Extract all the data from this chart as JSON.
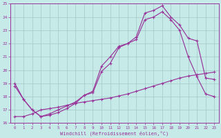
{
  "xlabel": "Windchill (Refroidissement éolien,°C)",
  "xlim": [
    -0.5,
    23.5
  ],
  "ylim": [
    16,
    25
  ],
  "yticks": [
    16,
    17,
    18,
    19,
    20,
    21,
    22,
    23,
    24,
    25
  ],
  "xticks": [
    0,
    1,
    2,
    3,
    4,
    5,
    6,
    7,
    8,
    9,
    10,
    11,
    12,
    13,
    14,
    15,
    16,
    17,
    18,
    19,
    20,
    21,
    22,
    23
  ],
  "bg_color": "#c5eae8",
  "line_color": "#993399",
  "grid_color": "#a0c8c8",
  "series1_x": [
    0,
    1,
    2,
    3,
    4,
    5,
    6,
    7,
    8,
    9,
    10,
    11,
    12,
    13,
    14,
    15,
    16,
    17,
    18,
    19,
    20,
    21,
    22,
    23
  ],
  "series1_y": [
    19.0,
    17.8,
    17.0,
    16.5,
    16.6,
    16.8,
    17.1,
    17.5,
    18.1,
    18.4,
    20.3,
    21.0,
    21.8,
    22.0,
    22.5,
    24.3,
    24.5,
    24.85,
    24.0,
    23.4,
    22.4,
    22.2,
    19.4,
    19.3
  ],
  "series2_x": [
    0,
    1,
    2,
    3,
    4,
    5,
    6,
    7,
    8,
    9,
    10,
    11,
    12,
    13,
    14,
    15,
    16,
    17,
    18,
    19,
    20,
    21,
    22,
    23
  ],
  "series2_y": [
    18.8,
    17.8,
    17.0,
    16.5,
    16.7,
    17.0,
    17.3,
    17.6,
    18.1,
    18.3,
    19.9,
    20.5,
    21.7,
    22.0,
    22.3,
    23.8,
    24.0,
    24.4,
    23.8,
    23.0,
    21.0,
    19.5,
    18.2,
    18.0
  ],
  "series3_x": [
    0,
    1,
    2,
    3,
    4,
    5,
    6,
    7,
    8,
    9,
    10,
    11,
    12,
    13,
    14,
    15,
    16,
    17,
    18,
    19,
    20,
    21,
    22,
    23
  ],
  "series3_y": [
    16.5,
    16.5,
    16.7,
    17.0,
    17.1,
    17.2,
    17.35,
    17.5,
    17.6,
    17.7,
    17.8,
    17.9,
    18.05,
    18.2,
    18.4,
    18.6,
    18.8,
    19.0,
    19.2,
    19.4,
    19.55,
    19.65,
    19.75,
    19.85
  ]
}
